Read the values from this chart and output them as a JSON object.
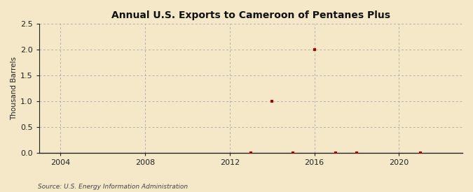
{
  "title": "Annual U.S. Exports to Cameroon of Pentanes Plus",
  "ylabel": "Thousand Barrels",
  "source": "Source: U.S. Energy Information Administration",
  "background_color": "#f5e8c8",
  "plot_bg_color": "#f5e8c8",
  "xlim": [
    2003,
    2023
  ],
  "ylim": [
    0.0,
    2.5
  ],
  "xticks": [
    2004,
    2008,
    2012,
    2016,
    2020
  ],
  "yticks": [
    0.0,
    0.5,
    1.0,
    1.5,
    2.0,
    2.5
  ],
  "data_years": [
    2013,
    2014,
    2015,
    2016,
    2017,
    2018,
    2021
  ],
  "data_values": [
    0.0,
    1.0,
    0.0,
    2.0,
    0.0,
    0.0,
    0.0
  ],
  "marker_color": "#aa0000",
  "marker_size": 3.5,
  "grid_color": "#999999",
  "axis_color": "#222222",
  "title_fontsize": 10,
  "label_fontsize": 7.5,
  "tick_fontsize": 8,
  "source_fontsize": 6.5
}
